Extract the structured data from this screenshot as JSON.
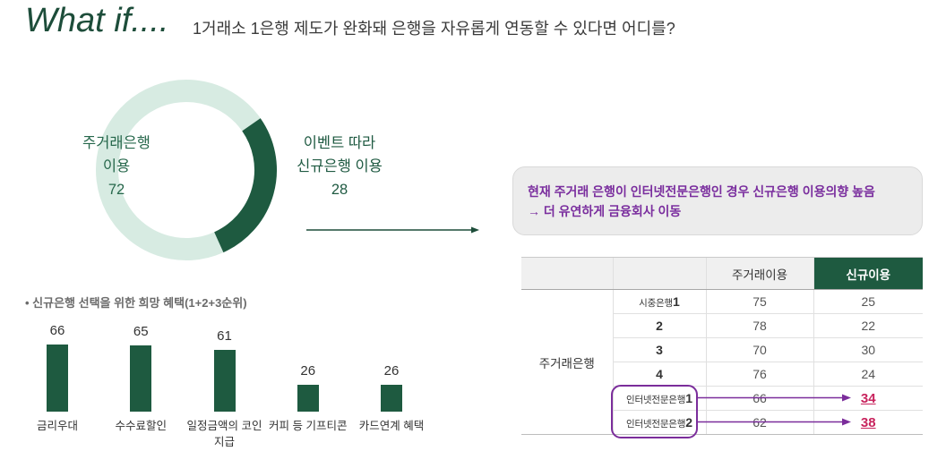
{
  "title": "What if....",
  "subtitle": "1거래소 1은행 제도가 완화돼 은행을 자유롭게 연동할 수 있다면 어디를?",
  "callout": {
    "line1": "현재 주거래 은행이 인터넷전문은행인 경우 신규은행 이용의향 높음",
    "line2": "→ 더 유연하게 금융회사 이동"
  },
  "colors": {
    "title_green": "#1d4d3a",
    "dark_green": "#1e5a40",
    "mint": "#d7ebe2",
    "purple": "#7b2d9b",
    "highlight": "#c8235d",
    "callout_text": "#7a2e9e",
    "callout_bg": "#ececec"
  },
  "chart_data": [
    {
      "type": "pie",
      "variant": "donut",
      "slices": [
        {
          "label_lines": [
            "주거래은행",
            "이용"
          ],
          "value": 72,
          "color": "#d7ebe2"
        },
        {
          "label_lines": [
            "이벤트 따라",
            "신규은행 이용"
          ],
          "value": 28,
          "color": "#1e5a40"
        }
      ]
    },
    {
      "type": "bar",
      "title": "• 신규은행 선택을 위한 희망 혜택(1+2+3순위)",
      "categories": [
        "금리우대",
        "수수료할인",
        "일정금액의 코인 지급",
        "커피 등 기프티콘",
        "카드연계 혜택"
      ],
      "values": [
        66,
        65,
        61,
        26,
        26
      ],
      "color": "#1e5a40"
    },
    {
      "type": "table",
      "columns": [
        "주거래이용",
        "신규이용"
      ],
      "row_group": "주거래은행",
      "rows": [
        {
          "name": "시중은행",
          "num": "1",
          "main": 75,
          "new": 25
        },
        {
          "num": "2",
          "main": 78,
          "new": 22
        },
        {
          "num": "3",
          "main": 70,
          "new": 30
        },
        {
          "num": "4",
          "main": 76,
          "new": 24
        },
        {
          "name": "인터넷전문은행",
          "num": "1",
          "main": 66,
          "new": 34,
          "highlight": true
        },
        {
          "name": "인터넷전문은행",
          "num": "2",
          "main": 62,
          "new": 38,
          "highlight": true
        }
      ]
    }
  ]
}
